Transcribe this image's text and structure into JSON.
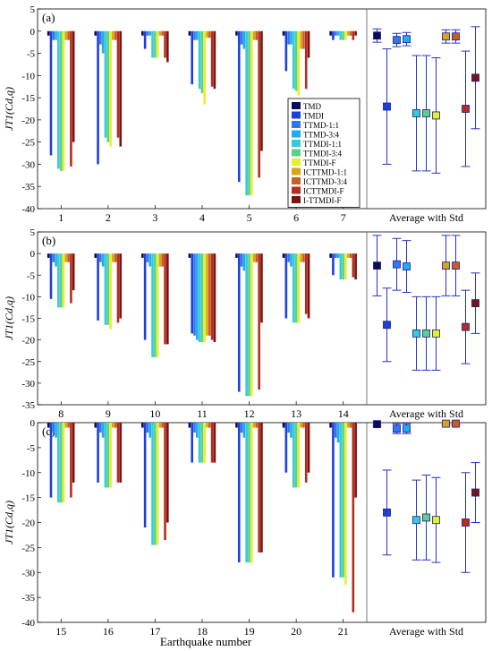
{
  "figure": {
    "xlabel": "Earthquake number",
    "ylabel": "JT1(Cd,q)",
    "average_label": "Average with Std"
  },
  "legend": {
    "entries": [
      "TMD",
      "TMDI",
      "TTMD-1:1",
      "TTMD-3:4",
      "TTMDI-1:1",
      "TTMDI-3:4",
      "TTMDI-F",
      "ICTTMD-1:1",
      "ICTTMD-3:4",
      "ICTTMDI-F",
      "I-TTMDI-F"
    ],
    "colors": [
      "#0a0a5a",
      "#1f3fd9",
      "#3377ee",
      "#22aaee",
      "#33ccd8",
      "#5ccf8a",
      "#e6f028",
      "#d9a418",
      "#c95d24",
      "#b82c1e",
      "#7a1410"
    ]
  },
  "chart_data": [
    {
      "panel": "(a)",
      "type": "bar",
      "ylim": [
        -40,
        5
      ],
      "yticks": [
        5,
        0,
        -5,
        -10,
        -15,
        -20,
        -25,
        -30,
        -35,
        -40
      ],
      "categories": [
        "1",
        "2",
        "3",
        "4",
        "5",
        "6",
        "7"
      ],
      "series_values": [
        [
          -1,
          -1,
          -1,
          -1,
          -1,
          -1,
          -1
        ],
        [
          -28,
          -30,
          -4,
          -12,
          -34,
          -9,
          -2
        ],
        [
          -2,
          -3,
          -1,
          -2,
          -3,
          -3,
          -1
        ],
        [
          -2,
          -5,
          -1,
          -2,
          -4,
          -3,
          -1
        ],
        [
          -31,
          -24,
          -6,
          -13,
          -37,
          -13,
          -2
        ],
        [
          -31.5,
          -25,
          -6,
          -14,
          -37,
          -13.5,
          -2
        ],
        [
          -31.5,
          -26,
          -6,
          -16.5,
          -37,
          -14.5,
          -2
        ],
        [
          -2,
          -2,
          -1,
          -1.5,
          -2,
          -4,
          -1
        ],
        [
          -2,
          -2,
          -1,
          -1.5,
          -2,
          -4,
          -1
        ],
        [
          -30.5,
          -24,
          -6,
          -12.5,
          -33,
          -13,
          -2
        ],
        [
          -25,
          -26,
          -7,
          -13,
          -27,
          -6,
          -1
        ]
      ],
      "average": {
        "means": [
          -1,
          -17,
          -2,
          -1.8,
          -18.5,
          -18.5,
          -19,
          -1.2,
          -1.2,
          -17.5,
          -10.5
        ],
        "stds": [
          1.5,
          13,
          1.5,
          1.5,
          13,
          13,
          13,
          1.5,
          1.5,
          13,
          11.5
        ]
      }
    },
    {
      "panel": "(b)",
      "type": "bar",
      "ylim": [
        -35,
        5
      ],
      "yticks": [
        5,
        0,
        -5,
        -10,
        -15,
        -20,
        -25,
        -30,
        -35
      ],
      "categories": [
        "8",
        "9",
        "10",
        "11",
        "12",
        "13",
        "14"
      ],
      "series_values": [
        [
          -1,
          -1,
          -1,
          -1,
          -1,
          -1,
          -1
        ],
        [
          -10.5,
          -15.5,
          -20,
          -18.5,
          -32,
          -15,
          -5
        ],
        [
          -2,
          -2,
          -2,
          -19,
          -3,
          -2,
          -1
        ],
        [
          -3,
          -3,
          -3,
          -20,
          -4,
          -3,
          -1
        ],
        [
          -12.5,
          -16.5,
          -24,
          -20.5,
          -33,
          -16,
          -6
        ],
        [
          -12.5,
          -16.5,
          -24,
          -20.5,
          -33,
          -16,
          -6
        ],
        [
          -12.5,
          -17.5,
          -24,
          -20.5,
          -33,
          -16,
          -6
        ],
        [
          -2,
          -2,
          -3,
          -19,
          -2,
          -2,
          -1
        ],
        [
          -2,
          -2,
          -3,
          -19,
          -2,
          -2,
          -1
        ],
        [
          -11.5,
          -16,
          -21,
          -20,
          -31.5,
          -14,
          -5.5
        ],
        [
          -8.5,
          -15,
          -21,
          -20.5,
          -16,
          -15,
          -6
        ]
      ],
      "average": {
        "means": [
          -2.8,
          -16.5,
          -2.5,
          -3,
          -18.5,
          -18.5,
          -18.5,
          -2.8,
          -2.8,
          -17,
          -11.5
        ],
        "stds": [
          7,
          8.5,
          6,
          6,
          8.5,
          8.5,
          8.5,
          7,
          7,
          8.5,
          7
        ]
      }
    },
    {
      "panel": "(c)",
      "type": "bar",
      "ylim": [
        -40,
        0
      ],
      "yticks": [
        0,
        -5,
        -10,
        -15,
        -20,
        -25,
        -30,
        -35,
        -40
      ],
      "categories": [
        "15",
        "16",
        "17",
        "18",
        "19",
        "20",
        "21"
      ],
      "series_values": [
        [
          -1,
          -1,
          -1,
          -1,
          -1,
          -1,
          -1
        ],
        [
          -15,
          -12,
          -21,
          -8,
          -28,
          -10,
          -31
        ],
        [
          -2,
          -2,
          -2,
          -2,
          -2,
          -2,
          -3
        ],
        [
          -3,
          -3,
          -3,
          -3,
          -3,
          -3,
          -4
        ],
        [
          -16,
          -13,
          -24.5,
          -8,
          -28,
          -13,
          -31
        ],
        [
          -16,
          -13,
          -24.5,
          -8,
          -28,
          -13,
          -31
        ],
        [
          -16,
          -13,
          -24.5,
          -8,
          -28,
          -13,
          -32.5
        ],
        [
          -1,
          -1,
          -1,
          -1,
          -1,
          -1,
          -1
        ],
        [
          -1,
          -1,
          -1,
          -1,
          -1,
          -1,
          -1
        ],
        [
          -15,
          -12,
          -23.5,
          -8,
          -26,
          -12,
          -38
        ],
        [
          -12,
          -12,
          -20,
          -8,
          -26,
          -10,
          -15
        ]
      ],
      "average": {
        "means": [
          -0.3,
          -18,
          -1.2,
          -1.2,
          -19.5,
          -19,
          -19.5,
          -0.2,
          -0.2,
          -20,
          -14
        ],
        "stds": [
          0.3,
          8.5,
          1,
          1,
          8,
          8.5,
          8.5,
          0.2,
          0.2,
          10,
          6
        ]
      }
    }
  ]
}
